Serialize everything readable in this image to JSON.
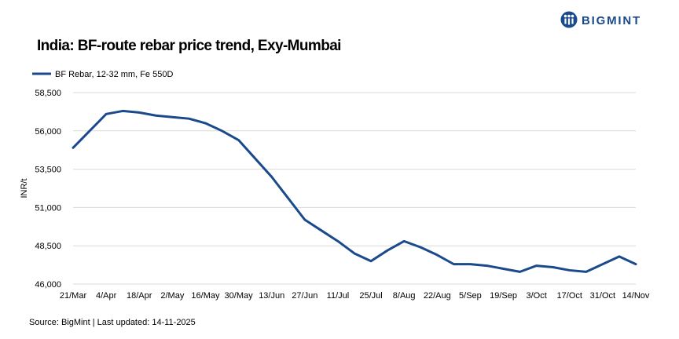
{
  "brand": {
    "name": "BIGMINT",
    "color": "#1a4a8c"
  },
  "title": "India: BF-route rebar price trend, Exy-Mumbai",
  "source": "Source: BigMint | Last updated: 14-11-2025",
  "chart_data": {
    "type": "line",
    "title": "India: BF-route rebar price trend, Exy-Mumbai",
    "xlabel": "",
    "ylabel": "INR/t",
    "ylim": [
      46000,
      58500
    ],
    "yticks": [
      46000,
      48500,
      51000,
      53500,
      56000,
      58500
    ],
    "ytick_labels": [
      "46,000",
      "48,500",
      "51,000",
      "53,500",
      "56,000",
      "58,500"
    ],
    "xtick_labels": [
      "21/Mar",
      "4/Apr",
      "18/Apr",
      "2/May",
      "16/May",
      "30/May",
      "13/Jun",
      "27/Jun",
      "11/Jul",
      "25/Jul",
      "8/Aug",
      "22/Aug",
      "5/Sep",
      "19/Sep",
      "3/Oct",
      "17/Oct",
      "31/Oct",
      "14/Nov"
    ],
    "grid": "horizontal",
    "legend": "top-left",
    "series": [
      {
        "name": "BF Rebar, 12-32 mm, Fe 550D",
        "color": "#1a4a8c",
        "values": [
          54900,
          56000,
          57100,
          57300,
          57200,
          57000,
          56900,
          56800,
          56500,
          56000,
          55400,
          54200,
          53000,
          51600,
          50200,
          49500,
          48800,
          48000,
          47500,
          48200,
          48800,
          48400,
          47900,
          47300,
          47300,
          47200,
          47000,
          46800,
          47200,
          47100,
          46900,
          46800,
          47300,
          47800,
          47300
        ]
      }
    ]
  }
}
